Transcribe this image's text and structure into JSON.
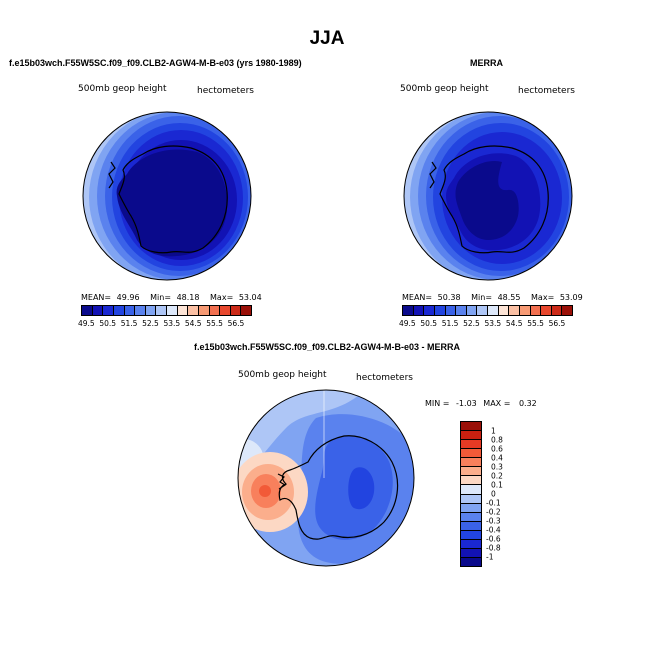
{
  "page": {
    "title": "JJA"
  },
  "panels": {
    "model": {
      "title": "f.e15b03wch.F55W5SC.f09_f09.CLB2-AGW4-M-B-e03 (yrs 1980-1989)",
      "variable": "500mb geop height",
      "units": "hectometers",
      "mean_label": "MEAN=",
      "mean": "49.96",
      "min_label": "Min=",
      "min": "48.18",
      "max_label": "Max=",
      "max": "53.04"
    },
    "obs": {
      "title": "MERRA",
      "variable": "500mb geop height",
      "units": "hectometers",
      "mean_label": "MEAN=",
      "mean": "50.38",
      "min_label": "Min=",
      "min": "48.55",
      "max_label": "Max=",
      "max": "53.09"
    },
    "diff": {
      "title": "f.e15b03wch.F55W5SC.f09_f09.CLB2-AGW4-M-B-e03 - MERRA",
      "variable": "500mb geop height",
      "units": "hectometers",
      "min_label": "MIN =",
      "min": "-1.03",
      "max_label": "MAX =",
      "max": "0.32"
    }
  },
  "abs_colorbar": {
    "colors": [
      "#0a0a8c",
      "#1212b4",
      "#1a28d2",
      "#2244e0",
      "#3a62e8",
      "#5a82ee",
      "#80a4f2",
      "#aec6f6",
      "#dde8fa",
      "#fde4d6",
      "#fbc0a4",
      "#f79a74",
      "#f27050",
      "#e8482e",
      "#cc2a18",
      "#9a1008"
    ],
    "labels": [
      "49.5",
      "50.5",
      "51.5",
      "52.5",
      "53.5",
      "54.5",
      "55.5",
      "56.5"
    ]
  },
  "diff_colorbar": {
    "colors": [
      "#9a1008",
      "#c82010",
      "#e63a24",
      "#f25a38",
      "#f8805c",
      "#fbae8c",
      "#fcd8c4",
      "#dde8fa",
      "#aec6f6",
      "#80a4f2",
      "#5a82ee",
      "#3a62e8",
      "#2244e0",
      "#1a28d2",
      "#1212b4",
      "#0a0a8c"
    ],
    "labels": [
      "1",
      "0.8",
      "0.6",
      "0.4",
      "0.3",
      "0.2",
      "0.1",
      "0",
      "-0.1",
      "-0.2",
      "-0.3",
      "-0.4",
      "-0.6",
      "-0.8",
      "-1"
    ]
  }
}
